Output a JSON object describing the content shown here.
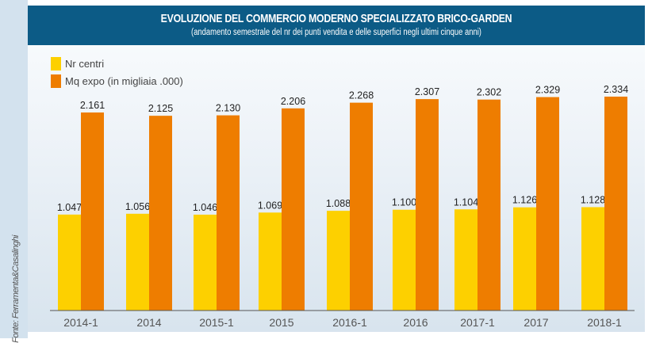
{
  "source": "Fonte: Ferramenta&Casalinghi",
  "chart_data": {
    "type": "bar",
    "title": "EVOLUZIONE DEL COMMERCIO MODERNO SPECIALIZZATO BRICO-GARDEN",
    "subtitle": "(andamento semestrale del nr dei punti vendita e delle superfici negli ultimi cinque anni)",
    "xlabel": "",
    "ylabel": "",
    "ylim": [
      0,
      2500
    ],
    "grid": false,
    "legend_position": "top-left",
    "categories": [
      "2014-1",
      "2014",
      "2015-1",
      "2015",
      "2016-1",
      "2016",
      "2017-1",
      "2017",
      "2018-1"
    ],
    "series": [
      {
        "name": "Nr centri",
        "color": "#fdd000",
        "values": [
          1047,
          1056,
          1046,
          1069,
          1088,
          1100,
          1104,
          1126,
          1128
        ],
        "labels": [
          "1.047",
          "1.056",
          "1.046",
          "1.069",
          "1.088",
          "1.100",
          "1.104",
          "1.126",
          "1.128"
        ]
      },
      {
        "name": "Mq expo (in migliaia .000)",
        "color": "#ee7d00",
        "values": [
          2161,
          2125,
          2130,
          2206,
          2268,
          2307,
          2302,
          2329,
          2334
        ],
        "labels": [
          "2.161",
          "2.125",
          "2.130",
          "2.206",
          "2.268",
          "2.307",
          "2.302",
          "2.329",
          "2.334"
        ]
      }
    ]
  }
}
